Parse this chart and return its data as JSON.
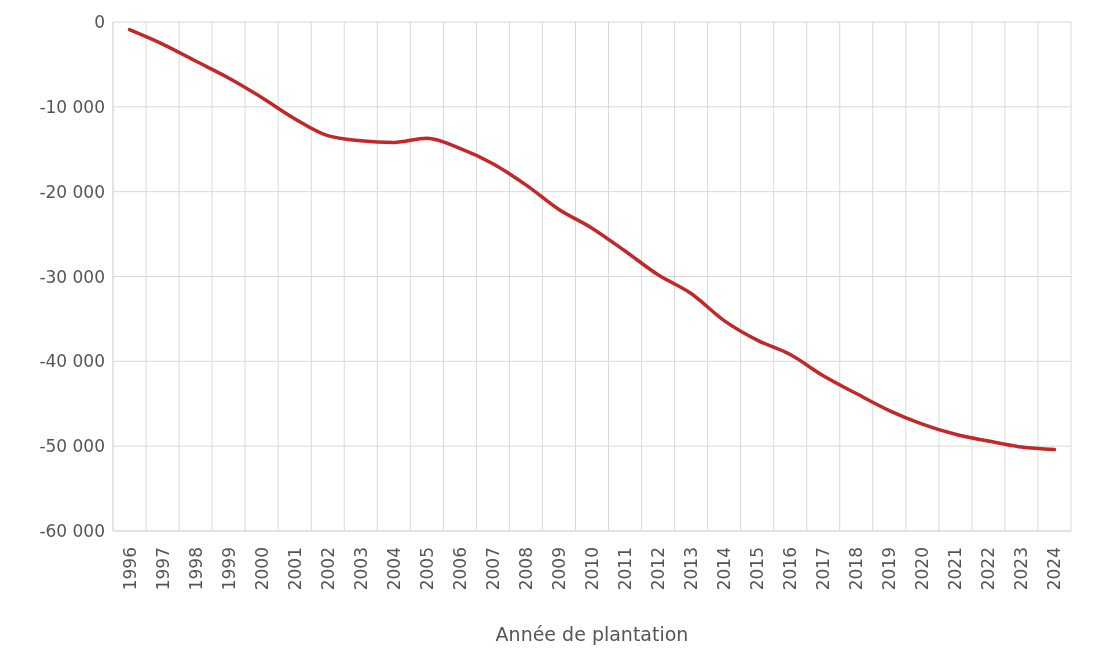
{
  "chart_data": {
    "type": "line",
    "xlabel": "Année de plantation",
    "categories": [
      "1996",
      "1997",
      "1998",
      "1999",
      "2000",
      "2001",
      "2002",
      "2003",
      "2004",
      "2005",
      "2006",
      "2007",
      "2008",
      "2009",
      "2010",
      "2011",
      "2012",
      "2013",
      "2014",
      "2015",
      "2016",
      "2017",
      "2018",
      "2019",
      "2020",
      "2021",
      "2022",
      "2023",
      "2024"
    ],
    "series": [
      {
        "color": "#c0282a",
        "values": [
          -900,
          -2600,
          -4600,
          -6600,
          -8900,
          -11400,
          -13400,
          -14000,
          -14200,
          -13700,
          -14900,
          -16700,
          -19200,
          -22100,
          -24300,
          -27000,
          -29800,
          -32000,
          -35200,
          -37500,
          -39200,
          -41700,
          -43800,
          -45800,
          -47400,
          -48600,
          -49400,
          -50100,
          -50400
        ]
      }
    ],
    "ylim": [
      -60000,
      0
    ],
    "yticks": [
      {
        "value": -60000,
        "label": "-60 000"
      },
      {
        "value": -50000,
        "label": "-50 000"
      },
      {
        "value": -40000,
        "label": "-40 000"
      },
      {
        "value": -30000,
        "label": "-30 000"
      },
      {
        "value": -20000,
        "label": "-20 000"
      },
      {
        "value": -10000,
        "label": "-10 000"
      },
      {
        "value": 0,
        "label": "0"
      }
    ],
    "grid": true,
    "marker": "none",
    "line_style": "solid"
  }
}
